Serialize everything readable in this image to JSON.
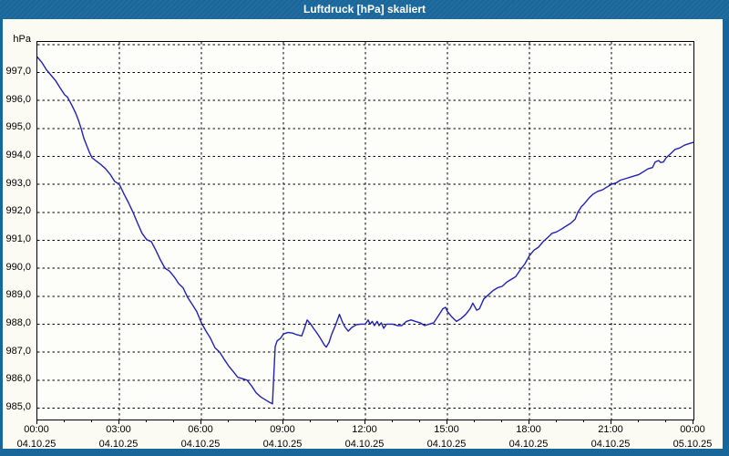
{
  "window": {
    "title": "Luftdruck [hPa] skaliert"
  },
  "colors": {
    "titlebar_bg": "#19669B",
    "window_border": "#19669B",
    "content_bg": "#FBFBF4",
    "plot_bg": "#FDFDF9",
    "grid": "#000000",
    "label_text": "#000000",
    "line": "#2222B2",
    "title_text": "#FFFFFF"
  },
  "chart_data": {
    "type": "line",
    "title": "Luftdruck [hPa] skaliert",
    "ylabel": "hPa",
    "grid": "dashed",
    "legend": "none",
    "ylim": [
      984.59,
      998.09
    ],
    "yticks": [
      {
        "value": 997,
        "label": "997,0"
      },
      {
        "value": 996,
        "label": "996,0"
      },
      {
        "value": 995,
        "label": "995,0"
      },
      {
        "value": 994,
        "label": "994,0"
      },
      {
        "value": 993,
        "label": "993,0"
      },
      {
        "value": 992,
        "label": "992,0"
      },
      {
        "value": 991,
        "label": "991,0"
      },
      {
        "value": 990,
        "label": "990,0"
      },
      {
        "value": 989,
        "label": "989,0"
      },
      {
        "value": 988,
        "label": "988,0"
      },
      {
        "value": 987,
        "label": "987,0"
      },
      {
        "value": 986,
        "label": "986,0"
      },
      {
        "value": 985,
        "label": "985,0"
      }
    ],
    "ygrid_unlabeled": [
      998
    ],
    "xlim_hours": [
      0,
      24
    ],
    "xgrid_hours": [
      3,
      6,
      9,
      12,
      15,
      18,
      21
    ],
    "xticks": [
      {
        "hour": 0,
        "time": "00:00",
        "date": "04.10.25"
      },
      {
        "hour": 3,
        "time": "03:00",
        "date": "04.10.25"
      },
      {
        "hour": 6,
        "time": "06:00",
        "date": "04.10.25"
      },
      {
        "hour": 9,
        "time": "09:00",
        "date": "04.10.25"
      },
      {
        "hour": 12,
        "time": "12:00",
        "date": "04.10.25"
      },
      {
        "hour": 15,
        "time": "15:00",
        "date": "04.10.25"
      },
      {
        "hour": 18,
        "time": "18:00",
        "date": "04.10.25"
      },
      {
        "hour": 21,
        "time": "21:00",
        "date": "04.10.25"
      },
      {
        "hour": 24,
        "time": "00:00",
        "date": "05.10.25"
      }
    ],
    "series": [
      {
        "name": "Luftdruck",
        "color": "#2222B2",
        "points": [
          [
            0,
            997.55
          ],
          [
            0.17,
            997.35
          ],
          [
            0.33,
            997.1
          ],
          [
            0.5,
            996.9
          ],
          [
            0.67,
            996.7
          ],
          [
            0.83,
            996.45
          ],
          [
            1,
            996.2
          ],
          [
            1.1,
            996.12
          ],
          [
            1.25,
            995.85
          ],
          [
            1.4,
            995.55
          ],
          [
            1.5,
            995.3
          ],
          [
            1.6,
            995.0
          ],
          [
            1.7,
            994.65
          ],
          [
            1.8,
            994.4
          ],
          [
            1.9,
            994.15
          ],
          [
            2,
            993.95
          ],
          [
            2.17,
            993.82
          ],
          [
            2.33,
            993.7
          ],
          [
            2.5,
            993.55
          ],
          [
            2.67,
            993.35
          ],
          [
            2.83,
            993.1
          ],
          [
            3,
            993.0
          ],
          [
            3.17,
            992.65
          ],
          [
            3.33,
            992.35
          ],
          [
            3.5,
            992.0
          ],
          [
            3.67,
            991.6
          ],
          [
            3.83,
            991.25
          ],
          [
            4,
            991.02
          ],
          [
            4.17,
            990.95
          ],
          [
            4.33,
            990.65
          ],
          [
            4.5,
            990.3
          ],
          [
            4.67,
            990.0
          ],
          [
            4.83,
            989.9
          ],
          [
            5,
            989.7
          ],
          [
            5.17,
            989.45
          ],
          [
            5.33,
            989.3
          ],
          [
            5.5,
            988.95
          ],
          [
            5.67,
            988.7
          ],
          [
            5.83,
            988.45
          ],
          [
            6,
            988.05
          ],
          [
            6.17,
            987.75
          ],
          [
            6.33,
            987.5
          ],
          [
            6.5,
            987.15
          ],
          [
            6.67,
            987.0
          ],
          [
            6.83,
            986.75
          ],
          [
            7,
            986.5
          ],
          [
            7.17,
            986.3
          ],
          [
            7.33,
            986.1
          ],
          [
            7.5,
            986.05
          ],
          [
            7.67,
            986.0
          ],
          [
            7.83,
            985.8
          ],
          [
            8,
            985.55
          ],
          [
            8.17,
            985.4
          ],
          [
            8.33,
            985.3
          ],
          [
            8.5,
            985.2
          ],
          [
            8.6,
            985.15
          ],
          [
            8.65,
            986.2
          ],
          [
            8.7,
            987.2
          ],
          [
            8.77,
            987.4
          ],
          [
            8.9,
            987.5
          ],
          [
            9,
            987.65
          ],
          [
            9.17,
            987.7
          ],
          [
            9.33,
            987.68
          ],
          [
            9.5,
            987.62
          ],
          [
            9.67,
            987.58
          ],
          [
            9.75,
            987.8
          ],
          [
            9.87,
            988.15
          ],
          [
            10,
            988.0
          ],
          [
            10.1,
            987.85
          ],
          [
            10.2,
            987.72
          ],
          [
            10.35,
            987.5
          ],
          [
            10.5,
            987.25
          ],
          [
            10.57,
            987.18
          ],
          [
            10.67,
            987.35
          ],
          [
            10.77,
            987.65
          ],
          [
            10.9,
            987.95
          ],
          [
            11.05,
            988.35
          ],
          [
            11.15,
            988.1
          ],
          [
            11.25,
            987.9
          ],
          [
            11.37,
            987.75
          ],
          [
            11.5,
            987.88
          ],
          [
            11.67,
            987.98
          ],
          [
            11.83,
            988.0
          ],
          [
            12,
            988.0
          ],
          [
            12.1,
            988.15
          ],
          [
            12.17,
            988.0
          ],
          [
            12.25,
            988.1
          ],
          [
            12.33,
            987.95
          ],
          [
            12.43,
            988.1
          ],
          [
            12.5,
            987.95
          ],
          [
            12.58,
            988.05
          ],
          [
            12.67,
            987.85
          ],
          [
            12.77,
            988.0
          ],
          [
            13,
            988.0
          ],
          [
            13.17,
            987.95
          ],
          [
            13.33,
            987.95
          ],
          [
            13.5,
            988.1
          ],
          [
            13.67,
            988.15
          ],
          [
            13.83,
            988.1
          ],
          [
            14,
            988.05
          ],
          [
            14.17,
            987.95
          ],
          [
            14.33,
            988.0
          ],
          [
            14.5,
            988.05
          ],
          [
            14.67,
            988.3
          ],
          [
            14.83,
            988.55
          ],
          [
            14.93,
            988.6
          ],
          [
            15,
            988.45
          ],
          [
            15.17,
            988.25
          ],
          [
            15.33,
            988.1
          ],
          [
            15.5,
            988.2
          ],
          [
            15.67,
            988.35
          ],
          [
            15.83,
            988.55
          ],
          [
            15.93,
            988.75
          ],
          [
            16.07,
            988.5
          ],
          [
            16.17,
            988.55
          ],
          [
            16.33,
            988.9
          ],
          [
            16.5,
            989.05
          ],
          [
            16.67,
            989.2
          ],
          [
            16.83,
            989.3
          ],
          [
            17,
            989.35
          ],
          [
            17.17,
            989.5
          ],
          [
            17.33,
            989.6
          ],
          [
            17.5,
            989.7
          ],
          [
            17.67,
            989.95
          ],
          [
            17.83,
            990.15
          ],
          [
            18,
            990.45
          ],
          [
            18.17,
            990.65
          ],
          [
            18.33,
            990.75
          ],
          [
            18.5,
            990.95
          ],
          [
            18.67,
            991.1
          ],
          [
            18.83,
            991.25
          ],
          [
            19,
            991.3
          ],
          [
            19.17,
            991.4
          ],
          [
            19.33,
            991.5
          ],
          [
            19.5,
            991.6
          ],
          [
            19.67,
            991.75
          ],
          [
            19.77,
            992.0
          ],
          [
            19.9,
            992.2
          ],
          [
            20,
            992.3
          ],
          [
            20.17,
            992.5
          ],
          [
            20.33,
            992.65
          ],
          [
            20.5,
            992.75
          ],
          [
            20.67,
            992.8
          ],
          [
            20.83,
            992.9
          ],
          [
            21,
            993.0
          ],
          [
            21.17,
            993.05
          ],
          [
            21.33,
            993.15
          ],
          [
            21.5,
            993.2
          ],
          [
            21.67,
            993.25
          ],
          [
            21.83,
            993.3
          ],
          [
            22,
            993.35
          ],
          [
            22.17,
            993.45
          ],
          [
            22.33,
            993.55
          ],
          [
            22.5,
            993.6
          ],
          [
            22.6,
            993.8
          ],
          [
            22.73,
            993.85
          ],
          [
            22.8,
            993.78
          ],
          [
            22.9,
            993.8
          ],
          [
            23,
            993.95
          ],
          [
            23.17,
            994.1
          ],
          [
            23.33,
            994.25
          ],
          [
            23.5,
            994.3
          ],
          [
            23.67,
            994.4
          ],
          [
            23.83,
            994.45
          ],
          [
            24,
            994.5
          ]
        ]
      }
    ]
  }
}
